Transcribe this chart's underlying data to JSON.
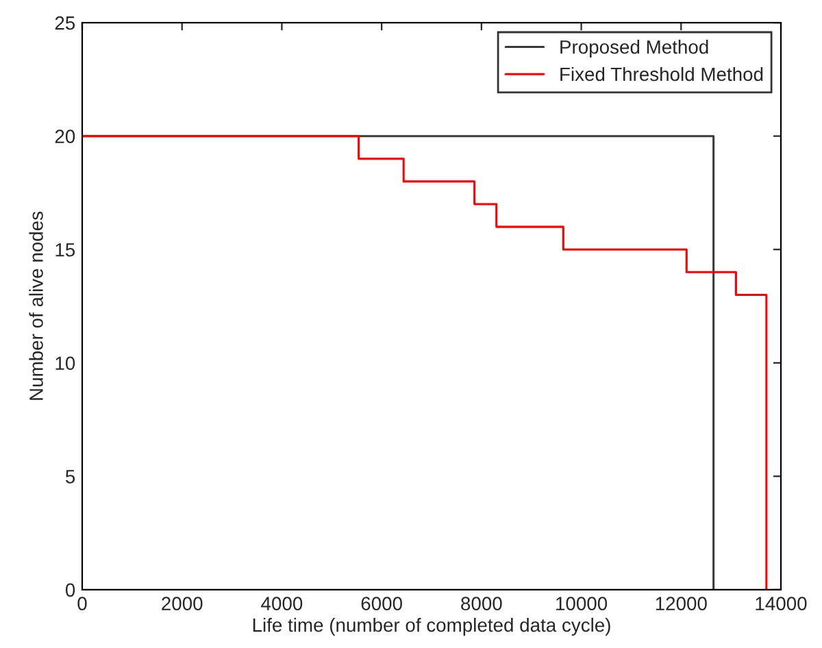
{
  "chart_data": {
    "type": "step",
    "xlabel": "Life time (number of completed data cycle)",
    "ylabel": "Number of alive nodes",
    "series": [
      {
        "name": "Proposed Method",
        "color": "#3a3a3a",
        "x": [
          0,
          12650
        ],
        "values": [
          20,
          0
        ]
      },
      {
        "name": "Fixed Threshold Method",
        "color": "#ff0000",
        "x": [
          0,
          5540,
          6440,
          7860,
          8300,
          9640,
          12110,
          13100,
          13710
        ],
        "values": [
          20,
          19,
          18,
          17,
          16,
          15,
          14,
          13,
          0
        ]
      }
    ],
    "xlim": [
      0,
      14000
    ],
    "xticks": [
      0,
      2000,
      4000,
      6000,
      8000,
      10000,
      12000,
      14000
    ],
    "ylim": [
      0,
      25
    ],
    "yticks": [
      0,
      5,
      10,
      15,
      20,
      25
    ],
    "grid": false,
    "legend": "top right"
  }
}
